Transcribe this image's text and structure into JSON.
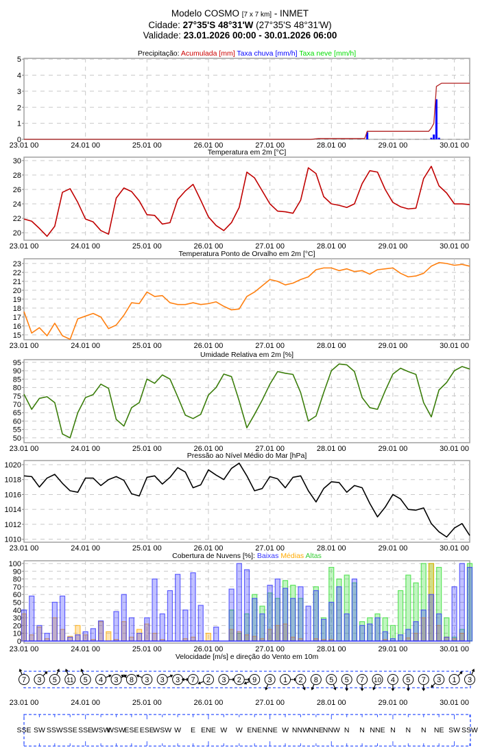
{
  "header": {
    "model": "Modelo COSMO ",
    "resolution": "[7 x 7 km]",
    "source": " - INMET",
    "city_label": "Cidade: ",
    "city_coords": "27°35'S 48°31'W",
    "city_coords_alt": " (27°35'S 48°31'W)",
    "validity_label": "Validade: ",
    "validity_range": "23.01.2026 00:00 - 30.01.2026 06:00"
  },
  "x_axis": {
    "start": "23.01 00",
    "step_hours": 3,
    "total_hours": 174,
    "day_labels": [
      "23.01 00",
      "24.01 00",
      "25.01 00",
      "26.01 00",
      "27.01 00",
      "28.01 00",
      "29.01 00",
      "30.01 00"
    ]
  },
  "colors": {
    "accum": "#b22222",
    "rain": "#0000ff",
    "snow": "#00dd00",
    "temp": "#c00000",
    "dew": "#ff7f0e",
    "humidity": "#3a7d0a",
    "pressure": "#000000",
    "cloud_low": "#3333ff",
    "cloud_mid": "#ffaa00",
    "cloud_high": "#33dd33",
    "wind_box": "#3355ff"
  },
  "chart_data": [
    {
      "id": "precip",
      "type": "bar+line",
      "title_parts": [
        {
          "text": "Precipitação: ",
          "color": "#000000"
        },
        {
          "text": "Acumulada [mm] ",
          "color": "#cc0000"
        },
        {
          "text": "Taxa chuva [mm/h] ",
          "color": "#0000ff"
        },
        {
          "text": "Taxa neve [mm/h]",
          "color": "#00dd00"
        }
      ],
      "ylim": [
        0,
        5.05
      ],
      "yticks": [
        0,
        1,
        2,
        3,
        4,
        5
      ],
      "accumulated": [
        [
          0,
          0
        ],
        [
          112,
          0
        ],
        [
          115,
          0.05
        ],
        [
          133,
          0.05
        ],
        [
          134,
          0.5
        ],
        [
          158,
          0.5
        ],
        [
          159,
          0.7
        ],
        [
          160,
          1.0
        ],
        [
          161,
          3.3
        ],
        [
          163,
          3.5
        ],
        [
          174,
          3.5
        ]
      ],
      "rain_rate": [
        [
          134,
          0.45
        ],
        [
          159,
          0.1
        ],
        [
          160,
          0.3
        ],
        [
          161,
          2.5
        ],
        [
          162,
          0.1
        ]
      ],
      "snow_rate": []
    },
    {
      "id": "temp",
      "type": "line",
      "title_parts": [
        {
          "text": "Temperatura em 2m [°C]",
          "color": "#000000"
        }
      ],
      "ylim": [
        18.96,
        30.47
      ],
      "yticks": [
        20,
        22,
        24,
        26,
        28,
        30
      ],
      "values": [
        21.9,
        21.6,
        20.6,
        19.5,
        20.9,
        25.6,
        26.1,
        24.2,
        21.9,
        21.5,
        20.3,
        19.8,
        24.8,
        26.2,
        25.7,
        24.4,
        22.5,
        22.4,
        21.2,
        21.4,
        24.6,
        25.8,
        26.7,
        24.5,
        22.2,
        21.0,
        20.3,
        21.4,
        23.5,
        28.4,
        27.6,
        25.8,
        24.0,
        23.0,
        22.9,
        22.7,
        24.5,
        29.0,
        28.2,
        25.0,
        24.0,
        23.8,
        23.5,
        24.0,
        26.8,
        28.6,
        28.4,
        26.0,
        24.2,
        23.6,
        23.3,
        23.4,
        27.5,
        29.2,
        26.5,
        25.5,
        24.0,
        24.0,
        23.9
      ]
    },
    {
      "id": "dew",
      "type": "line",
      "title_parts": [
        {
          "text": "Temperatura Ponto de Orvalho em 2m [°C]",
          "color": "#000000"
        }
      ],
      "ylim": [
        14.45,
        23.53
      ],
      "yticks": [
        15,
        16,
        17,
        18,
        19,
        20,
        21,
        22,
        23
      ],
      "values": [
        17.6,
        15.2,
        15.8,
        14.9,
        16.3,
        14.9,
        14.5,
        16.8,
        17.1,
        17.4,
        17.0,
        15.7,
        16.1,
        17.2,
        18.6,
        18.5,
        19.8,
        19.3,
        19.4,
        18.6,
        18.4,
        18.4,
        18.6,
        18.4,
        18.5,
        18.7,
        18.2,
        17.8,
        17.9,
        19.3,
        19.8,
        20.5,
        21.2,
        21.0,
        20.6,
        20.8,
        21.2,
        21.5,
        22.3,
        22.5,
        22.5,
        22.2,
        22.4,
        22.1,
        22.2,
        21.8,
        22.3,
        22.4,
        22.5,
        21.9,
        21.5,
        21.6,
        21.9,
        22.7,
        23.1,
        23.0,
        22.8,
        22.9,
        22.7
      ]
    },
    {
      "id": "humidity",
      "type": "line",
      "title_parts": [
        {
          "text": "Umidade Relativa em 2m [%]",
          "color": "#000000"
        }
      ],
      "ylim": [
        47.1,
        96.6
      ],
      "yticks": [
        50,
        55,
        60,
        65,
        70,
        75,
        80,
        85,
        90,
        95
      ],
      "values": [
        76,
        67,
        73.5,
        74.5,
        71,
        52.3,
        50,
        65,
        74,
        75.8,
        82,
        79.5,
        61,
        57,
        68,
        71,
        85,
        82.5,
        87.5,
        85,
        74.5,
        63.5,
        61.5,
        64,
        75.5,
        80,
        88,
        86.5,
        72,
        56,
        64,
        72.5,
        82,
        89.5,
        88.5,
        87.8,
        77,
        60,
        63,
        77,
        90,
        94,
        93.5,
        89.5,
        74,
        68,
        67,
        78,
        88,
        91.5,
        89.5,
        87.8,
        71,
        62.5,
        78.5,
        83,
        90,
        92.5,
        91
      ]
    },
    {
      "id": "pressure",
      "type": "line",
      "title_parts": [
        {
          "text": "Pressão ao Nível Médio do Mar [hPa]",
          "color": "#000000"
        }
      ],
      "ylim": [
        1009.6,
        1020.55
      ],
      "yticks": [
        1010,
        1012,
        1014,
        1016,
        1018,
        1020
      ],
      "values": [
        1018.5,
        1018.4,
        1017.0,
        1018.2,
        1018.7,
        1017.5,
        1016.5,
        1016.3,
        1018.2,
        1018.2,
        1017.2,
        1018.0,
        1018.4,
        1017.9,
        1016.1,
        1015.8,
        1018.3,
        1018.5,
        1017.4,
        1018.3,
        1019.6,
        1019.0,
        1016.9,
        1017.3,
        1019.3,
        1018.6,
        1018.0,
        1019.5,
        1020.2,
        1018.5,
        1016.5,
        1016.8,
        1018.4,
        1018.1,
        1016.9,
        1018.3,
        1018.5,
        1016.5,
        1015.0,
        1016.8,
        1017.7,
        1017.6,
        1016.3,
        1017.2,
        1016.9,
        1014.8,
        1013.0,
        1014.3,
        1016.0,
        1015.4,
        1014.0,
        1013.9,
        1014.2,
        1012.1,
        1011.0,
        1010.3,
        1011.5,
        1012.1,
        1010.5
      ]
    },
    {
      "id": "clouds",
      "type": "bar",
      "title_parts": [
        {
          "text": "Cobertura de Nuvens [%]: ",
          "color": "#000000"
        },
        {
          "text": "Baixas ",
          "color": "#3333ff"
        },
        {
          "text": "Médias ",
          "color": "#ffaa00"
        },
        {
          "text": "Altas",
          "color": "#33cc33"
        }
      ],
      "ylim": [
        -2.7,
        103.5
      ],
      "yticks": [
        0,
        10,
        20,
        30,
        40,
        50,
        60,
        70,
        80,
        90,
        100
      ],
      "series": [
        {
          "name": "Altas",
          "values": [
            0,
            0,
            0,
            0,
            0,
            0,
            0,
            0,
            0,
            0,
            0,
            0,
            0,
            0,
            0,
            0,
            0,
            0,
            0,
            0,
            0,
            0,
            0,
            0,
            0,
            0,
            0,
            40,
            10,
            35,
            60,
            45,
            62,
            55,
            78,
            72,
            55,
            0,
            70,
            30,
            95,
            80,
            85,
            75,
            25,
            30,
            35,
            30,
            20,
            65,
            85,
            75,
            100,
            100,
            95,
            30,
            5,
            15,
            100
          ]
        },
        {
          "name": "Médias",
          "values": [
            35,
            8,
            18,
            3,
            30,
            15,
            6,
            20,
            8,
            2,
            25,
            12,
            2,
            25,
            5,
            15,
            22,
            10,
            2,
            0,
            0,
            3,
            5,
            0,
            10,
            0,
            0,
            15,
            12,
            8,
            6,
            3,
            15,
            20,
            22,
            5,
            3,
            0,
            3,
            2,
            2,
            0,
            0,
            0,
            0,
            0,
            0,
            2,
            0,
            0,
            4,
            10,
            30,
            100,
            20,
            5,
            3,
            10,
            0
          ]
        },
        {
          "name": "Baixas",
          "values": [
            40,
            58,
            20,
            10,
            50,
            58,
            5,
            8,
            12,
            16,
            26,
            0,
            38,
            60,
            30,
            10,
            30,
            80,
            35,
            65,
            86,
            40,
            88,
            46,
            0,
            18,
            0,
            67,
            100,
            92,
            55,
            35,
            72,
            80,
            68,
            55,
            70,
            45,
            65,
            28,
            50,
            70,
            35,
            80,
            20,
            22,
            30,
            12,
            3,
            8,
            15,
            25,
            40,
            60,
            35,
            5,
            70,
            100,
            95
          ]
        }
      ]
    }
  ],
  "wind": {
    "title": "Velocidade [m/s] e direção do Vento em 10m",
    "step_hours": 6,
    "speeds": [
      7,
      3,
      5,
      11,
      5,
      4,
      3,
      8,
      3,
      3,
      3,
      7,
      2,
      3,
      2,
      9,
      3,
      1,
      2,
      8,
      5,
      5,
      7,
      10,
      4,
      5,
      7,
      3,
      1,
      3
    ],
    "directions": [
      "SSE",
      "SW",
      "SSW",
      "SSE",
      "SSE",
      "WSW",
      "WSW",
      "ESE",
      "ESE",
      "WSW",
      "W",
      "E",
      "ENE",
      "W",
      "W",
      "ENE",
      "NNE",
      "W",
      "NNW",
      "NNE",
      "NNW",
      "N",
      "N",
      "NNE",
      "N",
      "N",
      "N",
      "NE",
      "SW",
      "SSW"
    ]
  }
}
